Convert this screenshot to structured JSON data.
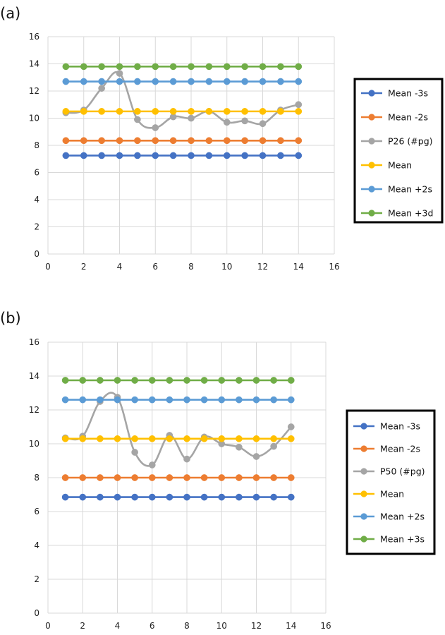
{
  "chart_data": [
    {
      "type": "line",
      "panel_label": "(a)",
      "x": [
        1,
        2,
        3,
        4,
        5,
        6,
        7,
        8,
        9,
        10,
        11,
        12,
        13,
        14
      ],
      "xlim": [
        0,
        16
      ],
      "xticks": [
        0,
        2,
        4,
        6,
        8,
        10,
        12,
        14,
        16
      ],
      "ylim": [
        0,
        16
      ],
      "yticks": [
        0,
        2,
        4,
        6,
        8,
        10,
        12,
        14,
        16
      ],
      "grid": true,
      "legend_position": "right",
      "series": [
        {
          "name": "Mean -3s",
          "color": "#4472C4",
          "smooth": false,
          "values": [
            7.25,
            7.25,
            7.25,
            7.25,
            7.25,
            7.25,
            7.25,
            7.25,
            7.25,
            7.25,
            7.25,
            7.25,
            7.25,
            7.25
          ]
        },
        {
          "name": "Mean -2s",
          "color": "#ED7D31",
          "smooth": false,
          "values": [
            8.35,
            8.35,
            8.35,
            8.35,
            8.35,
            8.35,
            8.35,
            8.35,
            8.35,
            8.35,
            8.35,
            8.35,
            8.35,
            8.35
          ]
        },
        {
          "name": "P26 (#pg)",
          "color": "#A5A5A5",
          "smooth": true,
          "values": [
            10.4,
            10.6,
            12.2,
            13.3,
            9.9,
            9.3,
            10.1,
            10.0,
            10.5,
            9.7,
            9.8,
            9.6,
            10.6,
            11.0
          ]
        },
        {
          "name": "Mean",
          "color": "#FFC000",
          "smooth": false,
          "values": [
            10.5,
            10.5,
            10.5,
            10.5,
            10.5,
            10.5,
            10.5,
            10.5,
            10.5,
            10.5,
            10.5,
            10.5,
            10.5,
            10.5
          ]
        },
        {
          "name": "Mean +2s",
          "color": "#5B9BD5",
          "smooth": false,
          "values": [
            12.7,
            12.7,
            12.7,
            12.7,
            12.7,
            12.7,
            12.7,
            12.7,
            12.7,
            12.7,
            12.7,
            12.7,
            12.7,
            12.7
          ]
        },
        {
          "name": "Mean +3d",
          "color": "#70AD47",
          "smooth": false,
          "values": [
            13.8,
            13.8,
            13.8,
            13.8,
            13.8,
            13.8,
            13.8,
            13.8,
            13.8,
            13.8,
            13.8,
            13.8,
            13.8,
            13.8
          ]
        }
      ]
    },
    {
      "type": "line",
      "panel_label": "(b)",
      "x": [
        1,
        2,
        3,
        4,
        5,
        6,
        7,
        8,
        9,
        10,
        11,
        12,
        13,
        14
      ],
      "xlim": [
        0,
        16
      ],
      "xticks": [
        0,
        2,
        4,
        6,
        8,
        10,
        12,
        14,
        16
      ],
      "ylim": [
        0,
        16
      ],
      "yticks": [
        0,
        2,
        4,
        6,
        8,
        10,
        12,
        14,
        16
      ],
      "grid": true,
      "legend_position": "right",
      "series": [
        {
          "name": "Mean -3s",
          "color": "#4472C4",
          "smooth": false,
          "values": [
            6.85,
            6.85,
            6.85,
            6.85,
            6.85,
            6.85,
            6.85,
            6.85,
            6.85,
            6.85,
            6.85,
            6.85,
            6.85,
            6.85
          ]
        },
        {
          "name": "Mean -2s",
          "color": "#ED7D31",
          "smooth": false,
          "values": [
            8.0,
            8.0,
            8.0,
            8.0,
            8.0,
            8.0,
            8.0,
            8.0,
            8.0,
            8.0,
            8.0,
            8.0,
            8.0,
            8.0
          ]
        },
        {
          "name": "P50 (#pg)",
          "color": "#A5A5A5",
          "smooth": true,
          "values": [
            10.35,
            10.45,
            12.5,
            12.75,
            9.5,
            8.75,
            10.5,
            9.1,
            10.4,
            10.0,
            9.8,
            9.25,
            9.85,
            11.0
          ]
        },
        {
          "name": "Mean",
          "color": "#FFC000",
          "smooth": false,
          "values": [
            10.3,
            10.3,
            10.3,
            10.3,
            10.3,
            10.3,
            10.3,
            10.3,
            10.3,
            10.3,
            10.3,
            10.3,
            10.3,
            10.3
          ]
        },
        {
          "name": "Mean +2s",
          "color": "#5B9BD5",
          "smooth": false,
          "values": [
            12.6,
            12.6,
            12.6,
            12.6,
            12.6,
            12.6,
            12.6,
            12.6,
            12.6,
            12.6,
            12.6,
            12.6,
            12.6,
            12.6
          ]
        },
        {
          "name": "Mean +3s",
          "color": "#70AD47",
          "smooth": false,
          "values": [
            13.75,
            13.75,
            13.75,
            13.75,
            13.75,
            13.75,
            13.75,
            13.75,
            13.75,
            13.75,
            13.75,
            13.75,
            13.75,
            13.75
          ]
        }
      ]
    }
  ]
}
